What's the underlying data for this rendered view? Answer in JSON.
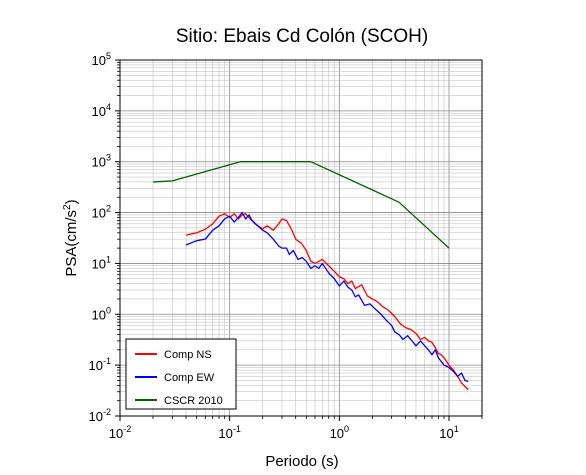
{
  "chart_data": {
    "type": "line",
    "title": "Sitio: Ebais Cd Colón (SCOH)",
    "xlabel": "Periodo (s)",
    "ylabel_main": "PSA(cm/s",
    "ylabel_sup": "2",
    "ylabel_close": ")",
    "x_scale": "log",
    "y_scale": "log",
    "xlim": [
      0.01,
      20
    ],
    "ylim": [
      0.01,
      100000
    ],
    "grid": true,
    "legend_position": "bottom-left",
    "x_ticks": [
      {
        "value": 0.01,
        "base": "10",
        "exp": "-2"
      },
      {
        "value": 0.1,
        "base": "10",
        "exp": "-1"
      },
      {
        "value": 1,
        "base": "10",
        "exp": "0"
      },
      {
        "value": 10,
        "base": "10",
        "exp": "1"
      }
    ],
    "y_ticks": [
      {
        "value": 0.01,
        "base": "10",
        "exp": "-2"
      },
      {
        "value": 0.1,
        "base": "10",
        "exp": "-1"
      },
      {
        "value": 1,
        "base": "10",
        "exp": "0"
      },
      {
        "value": 10,
        "base": "10",
        "exp": "1"
      },
      {
        "value": 100,
        "base": "10",
        "exp": "2"
      },
      {
        "value": 1000,
        "base": "10",
        "exp": "3"
      },
      {
        "value": 10000,
        "base": "10",
        "exp": "4"
      },
      {
        "value": 100000,
        "base": "10",
        "exp": "5"
      }
    ],
    "series": [
      {
        "name": "Comp NS",
        "color": "#ff0000",
        "points": [
          [
            0.04,
            36
          ],
          [
            0.05,
            40
          ],
          [
            0.06,
            47
          ],
          [
            0.07,
            60
          ],
          [
            0.08,
            85
          ],
          [
            0.09,
            95
          ],
          [
            0.1,
            80
          ],
          [
            0.11,
            95
          ],
          [
            0.12,
            75
          ],
          [
            0.13,
            90
          ],
          [
            0.14,
            95
          ],
          [
            0.15,
            80
          ],
          [
            0.17,
            60
          ],
          [
            0.2,
            48
          ],
          [
            0.22,
            55
          ],
          [
            0.25,
            45
          ],
          [
            0.28,
            60
          ],
          [
            0.3,
            75
          ],
          [
            0.33,
            70
          ],
          [
            0.37,
            45
          ],
          [
            0.4,
            30
          ],
          [
            0.45,
            25
          ],
          [
            0.5,
            18
          ],
          [
            0.55,
            11
          ],
          [
            0.6,
            10
          ],
          [
            0.7,
            12
          ],
          [
            0.8,
            9
          ],
          [
            0.9,
            7
          ],
          [
            1.0,
            5.5
          ],
          [
            1.1,
            5
          ],
          [
            1.2,
            4
          ],
          [
            1.3,
            4.5
          ],
          [
            1.4,
            3.2
          ],
          [
            1.6,
            3.8
          ],
          [
            1.8,
            2.3
          ],
          [
            2.0,
            2.0
          ],
          [
            2.2,
            1.8
          ],
          [
            2.5,
            1.4
          ],
          [
            2.8,
            1.2
          ],
          [
            3.2,
            0.9
          ],
          [
            3.6,
            0.65
          ],
          [
            4.0,
            0.55
          ],
          [
            4.5,
            0.5
          ],
          [
            5.0,
            0.42
          ],
          [
            5.5,
            0.32
          ],
          [
            6.0,
            0.35
          ],
          [
            6.5,
            0.3
          ],
          [
            7.0,
            0.28
          ],
          [
            7.5,
            0.22
          ],
          [
            8.0,
            0.17
          ],
          [
            8.5,
            0.16
          ],
          [
            9.0,
            0.14
          ],
          [
            10.0,
            0.1
          ],
          [
            11.0,
            0.08
          ],
          [
            12.0,
            0.06
          ],
          [
            13.0,
            0.045
          ],
          [
            14.0,
            0.038
          ],
          [
            15.0,
            0.033
          ]
        ]
      },
      {
        "name": "Comp EW",
        "color": "#0000ff",
        "points": [
          [
            0.04,
            23
          ],
          [
            0.05,
            28
          ],
          [
            0.06,
            30
          ],
          [
            0.07,
            45
          ],
          [
            0.08,
            55
          ],
          [
            0.09,
            75
          ],
          [
            0.1,
            85
          ],
          [
            0.11,
            65
          ],
          [
            0.12,
            80
          ],
          [
            0.13,
            100
          ],
          [
            0.14,
            75
          ],
          [
            0.15,
            90
          ],
          [
            0.16,
            70
          ],
          [
            0.18,
            55
          ],
          [
            0.2,
            45
          ],
          [
            0.22,
            40
          ],
          [
            0.25,
            30
          ],
          [
            0.28,
            22
          ],
          [
            0.3,
            20
          ],
          [
            0.33,
            20
          ],
          [
            0.35,
            15
          ],
          [
            0.38,
            18
          ],
          [
            0.42,
            12
          ],
          [
            0.46,
            13
          ],
          [
            0.5,
            11
          ],
          [
            0.55,
            8
          ],
          [
            0.6,
            9
          ],
          [
            0.65,
            8
          ],
          [
            0.7,
            10
          ],
          [
            0.8,
            6.5
          ],
          [
            0.9,
            5
          ],
          [
            1.0,
            3.6
          ],
          [
            1.1,
            4.5
          ],
          [
            1.2,
            3.4
          ],
          [
            1.3,
            3.0
          ],
          [
            1.4,
            2.2
          ],
          [
            1.5,
            2.4
          ],
          [
            1.7,
            1.5
          ],
          [
            1.9,
            1.6
          ],
          [
            2.1,
            1.3
          ],
          [
            2.4,
            1.0
          ],
          [
            2.7,
            0.75
          ],
          [
            3.0,
            0.6
          ],
          [
            3.2,
            0.45
          ],
          [
            3.5,
            0.4
          ],
          [
            3.8,
            0.32
          ],
          [
            4.2,
            0.38
          ],
          [
            4.6,
            0.3
          ],
          [
            5.0,
            0.24
          ],
          [
            5.5,
            0.3
          ],
          [
            6.0,
            0.24
          ],
          [
            6.5,
            0.2
          ],
          [
            7.0,
            0.16
          ],
          [
            7.5,
            0.2
          ],
          [
            8.0,
            0.14
          ],
          [
            9.0,
            0.1
          ],
          [
            10.0,
            0.09
          ],
          [
            11.0,
            0.075
          ],
          [
            12.0,
            0.06
          ],
          [
            13.0,
            0.07
          ],
          [
            14.0,
            0.05
          ],
          [
            15.0,
            0.048
          ]
        ]
      },
      {
        "name": "CSCR 2010",
        "color": "#006400",
        "points": [
          [
            0.02,
            400
          ],
          [
            0.03,
            420
          ],
          [
            0.125,
            1000
          ],
          [
            0.55,
            1000
          ],
          [
            3.5,
            160
          ],
          [
            10.0,
            20
          ]
        ]
      }
    ]
  }
}
